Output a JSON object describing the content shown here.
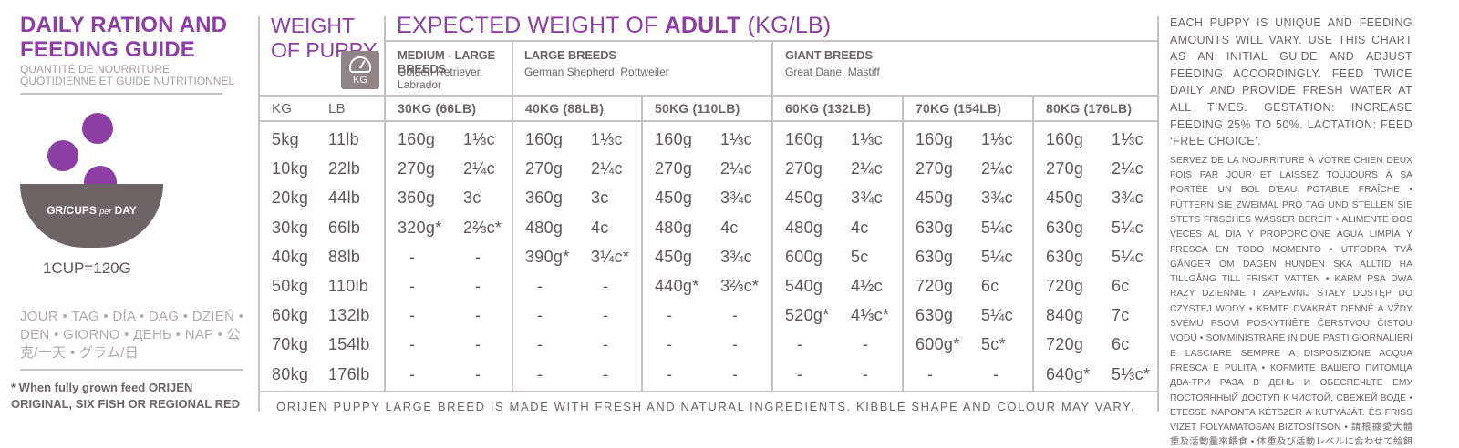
{
  "guide": {
    "title": "DAILY RATION AND FEEDING GUIDE",
    "title_fr": "QUANTITÉ DE NOURRITURE QUOTIDIENNE ET GUIDE NUTRITIONNEL",
    "bowl_label_main": "GR/CUPS",
    "bowl_label_per": "per",
    "bowl_label_day": "DAY",
    "cup_conversion": "1CUP=120G",
    "languages": "JOUR • TAG • DÍA • DAG • DZIEŃ • DEN • GIORNO • ДЕНЬ • NAP • 公克/一天 • グラム/日",
    "note": "* When fully grown feed ORIJEN ORIGINAL, SIX FISH OR REGIONAL RED",
    "colors": {
      "accent": "#8b3fa3",
      "bowl": "#6d6466",
      "rule": "#c9c2c4"
    }
  },
  "table": {
    "weight_header": "WEIGHT OF PUPPY",
    "kg_icon": "scale-icon",
    "kg_icon_label": "KG",
    "adult_header_pre": "EXPECTED WEIGHT OF",
    "adult_header_bold": "ADULT",
    "adult_header_post": "(KG/LB)",
    "breeds": [
      {
        "name": "MEDIUM - LARGE BREEDS",
        "examples": "Golden Retriever, Labrador"
      },
      {
        "name": "LARGE BREEDS",
        "examples": "German Shepherd, Rottweiler"
      },
      {
        "name": "GIANT BREEDS",
        "examples": "Great Dane, Mastiff"
      }
    ],
    "col_kg": "KG",
    "col_lb": "LB",
    "adult_columns": [
      "30KG (66LB)",
      "40KG (88LB)",
      "50KG (110LB)",
      "60KG (132LB)",
      "70KG (154LB)",
      "80KG (176LB)"
    ],
    "rows": [
      {
        "kg": "5kg",
        "lb": "11lb",
        "vals": [
          [
            "160g",
            "1⅓c"
          ],
          [
            "160g",
            "1⅓c"
          ],
          [
            "160g",
            "1⅓c"
          ],
          [
            "160g",
            "1⅓c"
          ],
          [
            "160g",
            "1⅓c"
          ],
          [
            "160g",
            "1⅓c"
          ]
        ]
      },
      {
        "kg": "10kg",
        "lb": "22lb",
        "vals": [
          [
            "270g",
            "2¼c"
          ],
          [
            "270g",
            "2¼c"
          ],
          [
            "270g",
            "2¼c"
          ],
          [
            "270g",
            "2¼c"
          ],
          [
            "270g",
            "2¼c"
          ],
          [
            "270g",
            "2¼c"
          ]
        ]
      },
      {
        "kg": "20kg",
        "lb": "44lb",
        "vals": [
          [
            "360g",
            "3c"
          ],
          [
            "360g",
            "3c"
          ],
          [
            "450g",
            "3¾c"
          ],
          [
            "450g",
            "3¾c"
          ],
          [
            "450g",
            "3¾c"
          ],
          [
            "450g",
            "3¾c"
          ]
        ]
      },
      {
        "kg": "30kg",
        "lb": "66lb",
        "vals": [
          [
            "320g*",
            "2⅔c*"
          ],
          [
            "480g",
            "4c"
          ],
          [
            "480g",
            "4c"
          ],
          [
            "480g",
            "4c"
          ],
          [
            "630g",
            "5¼c"
          ],
          [
            "630g",
            "5¼c"
          ]
        ]
      },
      {
        "kg": "40kg",
        "lb": "88lb",
        "vals": [
          [
            "-",
            "-"
          ],
          [
            "390g*",
            "3¼c*"
          ],
          [
            "450g",
            "3¾c"
          ],
          [
            "600g",
            "5c"
          ],
          [
            "630g",
            "5¼c"
          ],
          [
            "630g",
            "5¼c"
          ]
        ]
      },
      {
        "kg": "50kg",
        "lb": "110lb",
        "vals": [
          [
            "-",
            "-"
          ],
          [
            "-",
            "-"
          ],
          [
            "440g*",
            "3⅔c*"
          ],
          [
            "540g",
            "4½c"
          ],
          [
            "720g",
            "6c"
          ],
          [
            "720g",
            "6c"
          ]
        ]
      },
      {
        "kg": "60kg",
        "lb": "132lb",
        "vals": [
          [
            "-",
            "-"
          ],
          [
            "-",
            "-"
          ],
          [
            "-",
            "-"
          ],
          [
            "520g*",
            "4⅓c*"
          ],
          [
            "630g",
            "5¼c"
          ],
          [
            "840g",
            "7c"
          ]
        ]
      },
      {
        "kg": "70kg",
        "lb": "154lb",
        "vals": [
          [
            "-",
            "-"
          ],
          [
            "-",
            "-"
          ],
          [
            "-",
            "-"
          ],
          [
            "-",
            "-"
          ],
          [
            "600g*",
            "5c*"
          ],
          [
            "720g",
            "6c"
          ]
        ]
      },
      {
        "kg": "80kg",
        "lb": "176lb",
        "vals": [
          [
            "-",
            "-"
          ],
          [
            "-",
            "-"
          ],
          [
            "-",
            "-"
          ],
          [
            "-",
            "-"
          ],
          [
            "-",
            "-"
          ],
          [
            "640g*",
            "5⅓c*"
          ]
        ]
      }
    ],
    "footer": "ORIJEN PUPPY LARGE BREED IS MADE WITH FRESH AND NATURAL INGREDIENTS. KIBBLE SHAPE AND COLOUR MAY VARY."
  },
  "instructions": {
    "english": "EACH PUPPY IS UNIQUE AND FEEDING AMOUNTS WILL VARY. USE THIS CHART AS AN INITIAL GUIDE AND ADJUST FEEDING ACCORDINGLY. FEED TWICE DAILY AND PROVIDE FRESH WATER AT ALL TIMES. GESTATION: INCREASE FEEDING 25% TO 50%. LACTATION: FEED ‘FREE CHOICE’.",
    "multilingual": "SERVEZ DE LA NOURRITURE À VOTRE CHIEN DEUX FOIS PAR JOUR ET LAISSEZ TOUJOURS À SA PORTÉE UN BOL D’EAU POTABLE FRAÎCHE • FÜTTERN SIE ZWEIMAL PRO TAG UND STELLEN SIE STETS FRISCHES WASSER BEREIT • ALIMENTE DOS VECES AL DÍA Y PROPORCIONE AGUA LIMPIA Y FRESCA EN TODO MOMENTO • UTFODRA TVÅ GÅNGER OM DAGEN HUNDEN SKA ALLTID HA TILLGÅNG TILL FRISKT VATTEN • KARM PSA DWA RAZY DZIENNIE I ZAPEWNIJ STAŁY DOSTĘP DO CZYSTEJ WODY • KRMTE DVAKRÁT DENNĚ A VŽDY SVÉMU PSOVI POSKYTNĚTE ČERSTVOU ČISTOU VODU • SOMMINISTRARE IN DUE PASTI GIORNALIERI E LASCIARE SEMPRE A DISPOSIZIONE ACQUA FRESCA E PULITA • КОРМИТЕ ВАШЕГО ПИТОМЦА ДВА-ТРИ РАЗА В ДЕНЬ И ОБЕСПЕЧЬТЕ ЕМУ ПОСТОЯННЫЙ ДОСТУП К ЧИСТОЙ, СВЕЖЕЙ ВОДЕ • ETESSE NAPONTA KÉTSZER A KUTYÁJÁT. ÉS FRISS VIZET FOLYAMATOSAN BIZTOSÍTSON • 請根據愛犬體重及活動量來餵食 • 体重及び活動レベルに合わせて給餌してください。"
  }
}
